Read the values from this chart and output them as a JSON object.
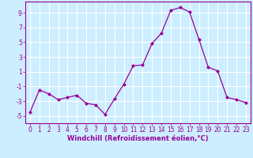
{
  "x": [
    0,
    1,
    2,
    3,
    4,
    5,
    6,
    7,
    8,
    9,
    10,
    11,
    12,
    13,
    14,
    15,
    16,
    17,
    18,
    19,
    20,
    21,
    22,
    23
  ],
  "y": [
    -4.5,
    -1.5,
    -2.0,
    -2.8,
    -2.5,
    -2.2,
    -3.3,
    -3.5,
    -4.8,
    -2.7,
    -0.7,
    1.8,
    1.9,
    4.8,
    6.2,
    9.3,
    9.7,
    9.1,
    5.4,
    1.6,
    1.1,
    -2.5,
    -2.8,
    -3.2
  ],
  "line_color": "#990099",
  "marker": "D",
  "markersize": 2.0,
  "linewidth": 0.9,
  "xlabel": "Windchill (Refroidissement éolien,°C)",
  "xlabel_fontsize": 6.0,
  "bg_color": "#cceeff",
  "grid_color": "#ffffff",
  "tick_color": "#990099",
  "label_color": "#990099",
  "ylim": [
    -6,
    10.5
  ],
  "yticks": [
    -5,
    -3,
    -1,
    1,
    3,
    5,
    7,
    9
  ],
  "xticks": [
    0,
    1,
    2,
    3,
    4,
    5,
    6,
    7,
    8,
    9,
    10,
    11,
    12,
    13,
    14,
    15,
    16,
    17,
    18,
    19,
    20,
    21,
    22,
    23
  ],
  "tick_fontsize": 5.5
}
